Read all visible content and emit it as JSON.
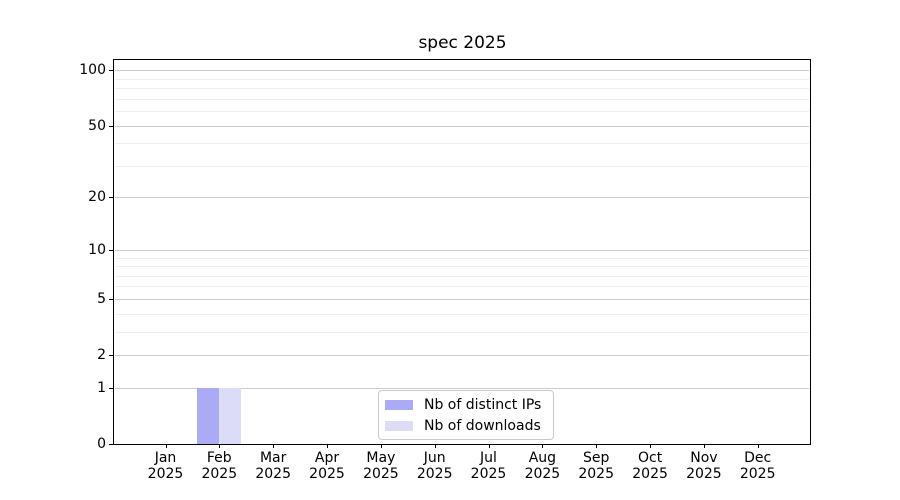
{
  "title": "spec 2025",
  "chart_data": {
    "type": "bar",
    "title": "spec 2025",
    "categories": [
      "Jan",
      "Feb",
      "Mar",
      "Apr",
      "May",
      "Jun",
      "Jul",
      "Aug",
      "Sep",
      "Oct",
      "Nov",
      "Dec"
    ],
    "category_year": "2025",
    "series": [
      {
        "name": "Nb of distinct IPs",
        "color": "#aaaaf5",
        "values": [
          0,
          1,
          0,
          0,
          0,
          0,
          0,
          0,
          0,
          0,
          0,
          0
        ]
      },
      {
        "name": "Nb of downloads",
        "color": "#dcdcf8",
        "values": [
          0,
          1,
          0,
          0,
          0,
          0,
          0,
          0,
          0,
          0,
          0,
          0
        ]
      }
    ],
    "xlabel": "",
    "ylabel": "",
    "yscale": "log1p",
    "ylim": [
      0,
      115
    ],
    "y_major_ticks": [
      0,
      1,
      2,
      5,
      10,
      20,
      50,
      100
    ],
    "y_minor_gridlines": [
      3,
      4,
      6,
      7,
      8,
      9,
      30,
      40,
      60,
      70,
      80,
      90
    ],
    "grid": "horizontal",
    "legend_position": "lower center inside"
  },
  "colors": {
    "axis": "#000000",
    "major_grid": "#cccccc",
    "minor_grid": "#eeeeee",
    "background": "#ffffff",
    "legend_border": "#c9c9c9",
    "text": "#000000"
  }
}
